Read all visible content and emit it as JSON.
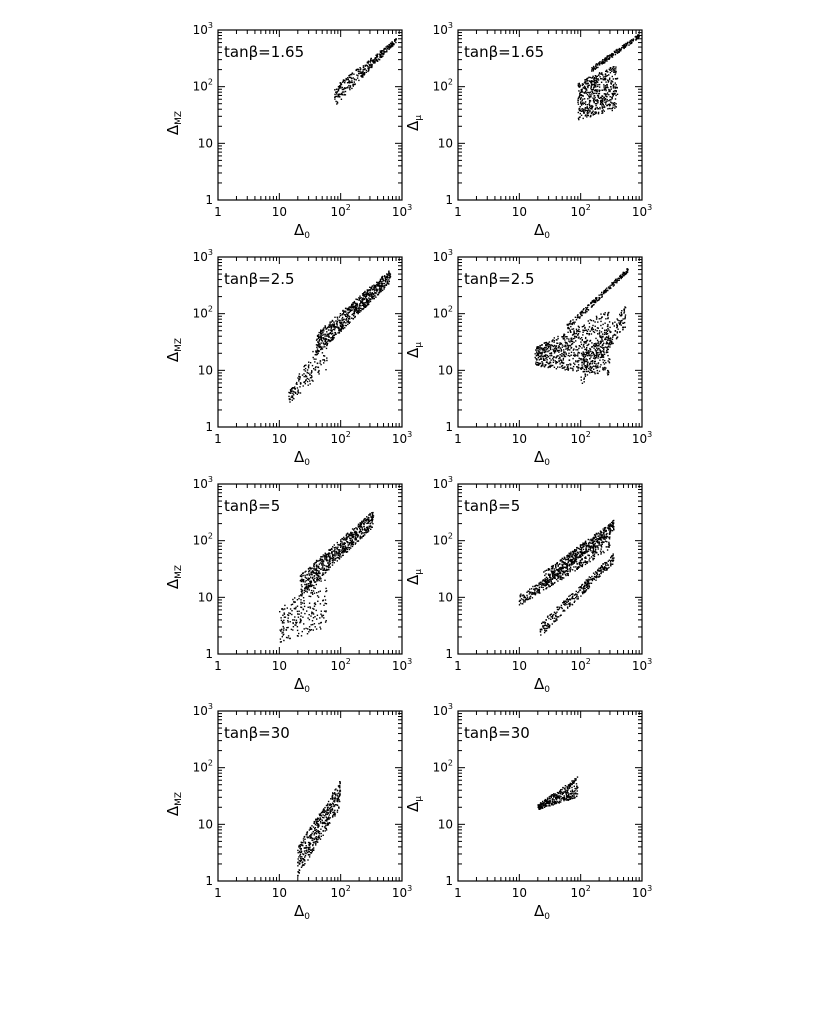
{
  "chart_data": [
    {
      "type": "scatter",
      "row": 0,
      "col": 0,
      "annotation": "tanβ=1.65",
      "xlabel": "Δ0",
      "ylabel": "ΔMZ",
      "xscale": "log",
      "yscale": "log",
      "xlim": [
        1,
        1000
      ],
      "ylim": [
        1,
        1000
      ],
      "x_tick_labels": [
        "1",
        "10",
        "10²",
        "10³"
      ],
      "y_tick_labels": [
        "1",
        "10",
        "10²",
        "10³"
      ],
      "regions": [
        {
          "shape": "band",
          "x_range": [
            80,
            800
          ],
          "y_at_xmin": [
            45,
            100
          ],
          "y_at_xmax": [
            600,
            700
          ],
          "n": 320
        }
      ]
    },
    {
      "type": "scatter",
      "row": 0,
      "col": 1,
      "annotation": "tanβ=1.65",
      "xlabel": "Δ0",
      "ylabel": "Δμ",
      "xscale": "log",
      "yscale": "log",
      "xlim": [
        1,
        1000
      ],
      "ylim": [
        1,
        1000
      ],
      "x_tick_labels": [
        "1",
        "10",
        "10²",
        "10³"
      ],
      "y_tick_labels": [
        "1",
        "10",
        "10²",
        "10³"
      ],
      "regions": [
        {
          "shape": "band",
          "x_range": [
            150,
            900
          ],
          "y_at_xmin": [
            180,
            220
          ],
          "y_at_xmax": [
            720,
            850
          ],
          "n": 180
        },
        {
          "shape": "band",
          "x_range": [
            90,
            400
          ],
          "y_at_xmin": [
            25,
            120
          ],
          "y_at_xmax": [
            40,
            250
          ],
          "n": 520
        }
      ]
    },
    {
      "type": "scatter",
      "row": 1,
      "col": 0,
      "annotation": "tanβ=2.5",
      "xlabel": "Δ0",
      "ylabel": "ΔMZ",
      "xscale": "log",
      "yscale": "log",
      "xlim": [
        1,
        1000
      ],
      "ylim": [
        1,
        1000
      ],
      "x_tick_labels": [
        "1",
        "10",
        "10²",
        "10³"
      ],
      "y_tick_labels": [
        "1",
        "10",
        "10²",
        "10³"
      ],
      "regions": [
        {
          "shape": "band",
          "x_range": [
            14,
            60
          ],
          "y_at_xmin": [
            2.5,
            4
          ],
          "y_at_xmax": [
            10,
            60
          ],
          "n": 160
        },
        {
          "shape": "band",
          "x_range": [
            40,
            650
          ],
          "y_at_xmin": [
            18,
            45
          ],
          "y_at_xmax": [
            350,
            600
          ],
          "n": 650
        }
      ]
    },
    {
      "type": "scatter",
      "row": 1,
      "col": 1,
      "annotation": "tanβ=2.5",
      "xlabel": "Δ0",
      "ylabel": "Δμ",
      "xscale": "log",
      "yscale": "log",
      "xlim": [
        1,
        1000
      ],
      "ylim": [
        1,
        1000
      ],
      "x_tick_labels": [
        "1",
        "10",
        "10²",
        "10³"
      ],
      "y_tick_labels": [
        "1",
        "10",
        "10²",
        "10³"
      ],
      "regions": [
        {
          "shape": "band",
          "x_range": [
            60,
            600
          ],
          "y_at_xmin": [
            50,
            65
          ],
          "y_at_xmax": [
            550,
            650
          ],
          "n": 200
        },
        {
          "shape": "band",
          "x_range": [
            18,
            300
          ],
          "y_at_xmin": [
            12,
            25
          ],
          "y_at_xmax": [
            8,
            120
          ],
          "n": 700
        },
        {
          "shape": "band",
          "x_range": [
            100,
            550
          ],
          "y_at_xmin": [
            5,
            15
          ],
          "y_at_xmax": [
            60,
            140
          ],
          "n": 220
        }
      ]
    },
    {
      "type": "scatter",
      "row": 2,
      "col": 0,
      "annotation": "tanβ=5",
      "xlabel": "Δ0",
      "ylabel": "ΔMZ",
      "xscale": "log",
      "yscale": "log",
      "xlim": [
        1,
        1000
      ],
      "ylim": [
        1,
        1000
      ],
      "x_tick_labels": [
        "1",
        "10",
        "10²",
        "10³"
      ],
      "y_tick_labels": [
        "1",
        "10",
        "10²",
        "10³"
      ],
      "regions": [
        {
          "shape": "band",
          "x_range": [
            10,
            60
          ],
          "y_at_xmin": [
            1.5,
            6
          ],
          "y_at_xmax": [
            3,
            30
          ],
          "n": 220
        },
        {
          "shape": "band",
          "x_range": [
            22,
            350
          ],
          "y_at_xmin": [
            10,
            25
          ],
          "y_at_xmax": [
            180,
            350
          ],
          "n": 650
        }
      ]
    },
    {
      "type": "scatter",
      "row": 2,
      "col": 1,
      "annotation": "tanβ=5",
      "xlabel": "Δ0",
      "ylabel": "Δμ",
      "xscale": "log",
      "yscale": "log",
      "xlim": [
        1,
        1000
      ],
      "ylim": [
        1,
        1000
      ],
      "x_tick_labels": [
        "1",
        "10",
        "10²",
        "10³"
      ],
      "y_tick_labels": [
        "1",
        "10",
        "10²",
        "10³"
      ],
      "regions": [
        {
          "shape": "band",
          "x_range": [
            25,
            350
          ],
          "y_at_xmin": [
            15,
            28
          ],
          "y_at_xmax": [
            150,
            230
          ],
          "n": 450
        },
        {
          "shape": "band",
          "x_range": [
            10,
            300
          ],
          "y_at_xmin": [
            7,
            11
          ],
          "y_at_xmax": [
            70,
            130
          ],
          "n": 380
        },
        {
          "shape": "band",
          "x_range": [
            22,
            350
          ],
          "y_at_xmin": [
            2,
            3.5
          ],
          "y_at_xmax": [
            40,
            60
          ],
          "n": 320
        }
      ]
    },
    {
      "type": "scatter",
      "row": 3,
      "col": 0,
      "annotation": "tanβ=30",
      "xlabel": "Δ0",
      "ylabel": "ΔMZ",
      "xscale": "log",
      "yscale": "log",
      "xlim": [
        1,
        1000
      ],
      "ylim": [
        1,
        1000
      ],
      "x_tick_labels": [
        "1",
        "10",
        "10²",
        "10³"
      ],
      "y_tick_labels": [
        "1",
        "10",
        "10²",
        "10³"
      ],
      "regions": [
        {
          "shape": "band",
          "x_range": [
            20,
            100
          ],
          "y_at_xmin": [
            1.2,
            4
          ],
          "y_at_xmax": [
            20,
            60
          ],
          "n": 420
        }
      ]
    },
    {
      "type": "scatter",
      "row": 3,
      "col": 1,
      "annotation": "tanβ=30",
      "xlabel": "Δ0",
      "ylabel": "Δμ",
      "xscale": "log",
      "yscale": "log",
      "xlim": [
        1,
        1000
      ],
      "ylim": [
        1,
        1000
      ],
      "x_tick_labels": [
        "1",
        "10",
        "10²",
        "10³"
      ],
      "y_tick_labels": [
        "1",
        "10",
        "10²",
        "10³"
      ],
      "regions": [
        {
          "shape": "band",
          "x_range": [
            20,
            90
          ],
          "y_at_xmin": [
            18,
            22
          ],
          "y_at_xmax": [
            30,
            70
          ],
          "n": 320
        }
      ]
    }
  ]
}
